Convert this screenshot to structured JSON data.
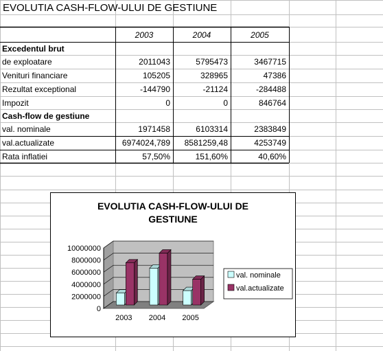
{
  "sheet": {
    "title": "EVOLUTIA CASH-FLOW-ULUI DE GESTIUNE",
    "headers": [
      "2003",
      "2004",
      "2005"
    ],
    "rows": [
      {
        "label": "Excedentul brut",
        "bold": true,
        "values": [
          "",
          "",
          ""
        ]
      },
      {
        "label": "de exploatare",
        "bold": false,
        "values": [
          "2011043",
          "5795473",
          "3467715"
        ]
      },
      {
        "label": "Venituri financiare",
        "bold": false,
        "values": [
          "105205",
          "328965",
          "47386"
        ]
      },
      {
        "label": "Rezultat exceptional",
        "bold": false,
        "values": [
          "-144790",
          "-21124",
          "-284488"
        ]
      },
      {
        "label": "Impozit",
        "bold": false,
        "values": [
          "0",
          "0",
          "846764"
        ]
      },
      {
        "label": "Cash-flow de gestiune",
        "bold": true,
        "values": [
          "",
          "",
          ""
        ]
      },
      {
        "label": "val. nominale",
        "bold": false,
        "values": [
          "1971458",
          "6103314",
          "2383849"
        ]
      },
      {
        "label": "val.actualizate",
        "bold": false,
        "values": [
          "6974024,789",
          "8581259,48",
          "4253749"
        ]
      },
      {
        "label": "Rata inflatiei",
        "bold": false,
        "values": [
          "57,50%",
          "151,60%",
          "40,60%"
        ]
      }
    ]
  },
  "chart_data": {
    "type": "bar",
    "title": "EVOLUTIA CASH-FLOW-ULUI DE GESTIUNE",
    "title_lines": [
      "EVOLUTIA CASH-FLOW-ULUI DE",
      "GESTIUNE"
    ],
    "categories": [
      "2003",
      "2004",
      "2005"
    ],
    "series": [
      {
        "name": "val. nominale",
        "values": [
          1971458,
          6103314,
          2383849
        ],
        "color": "#ccffff"
      },
      {
        "name": "val.actualizate",
        "values": [
          6974024.789,
          8581259.48,
          4253749
        ],
        "color": "#993366"
      }
    ],
    "ylim": [
      0,
      10000000
    ],
    "yticks": [
      "0",
      "2000000",
      "4000000",
      "6000000",
      "8000000",
      "10000000"
    ],
    "legend": "right",
    "grid": true,
    "wall_color": "#c0c0c0"
  }
}
